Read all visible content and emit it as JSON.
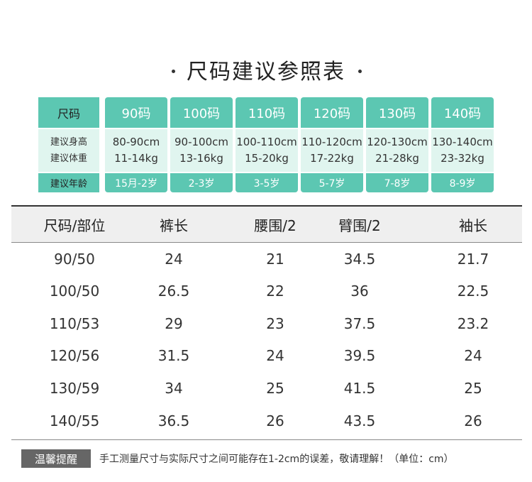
{
  "title": "尺码建议参照表",
  "size_guide": {
    "header": [
      "尺码",
      "90码",
      "100码",
      "110码",
      "120码",
      "130码",
      "140码"
    ],
    "height_label": "建议身高",
    "weight_label": "建议体重",
    "heights": [
      "80-90cm",
      "90-100cm",
      "100-110cm",
      "110-120cm",
      "120-130cm",
      "130-140cm"
    ],
    "weights": [
      "11-14kg",
      "13-16kg",
      "15-20kg",
      "17-22kg",
      "21-28kg",
      "23-32kg"
    ],
    "age_label": "建议年龄",
    "ages": [
      "15月-2岁",
      "2-3岁",
      "3-5岁",
      "5-7岁",
      "7-8岁",
      "8-9岁"
    ]
  },
  "table": {
    "headers": [
      "尺码/部位",
      "裤长",
      "腰围/2",
      "臂围/2",
      "袖长"
    ],
    "rows": [
      [
        "90/50",
        "24",
        "21",
        "34.5",
        "21.7"
      ],
      [
        "100/50",
        "26.5",
        "22",
        "36",
        "22.5"
      ],
      [
        "110/53",
        "29",
        "23",
        "37.5",
        "23.2"
      ],
      [
        "120/56",
        "31.5",
        "24",
        "39.5",
        "24"
      ],
      [
        "130/59",
        "34",
        "25",
        "41.5",
        "25"
      ],
      [
        "140/55",
        "36.5",
        "26",
        "43.5",
        "26"
      ]
    ]
  },
  "notice": {
    "badge": "温馨提醒",
    "text": "手工测量尺寸与实际尺寸之间可能存在1-2cm的误差，敬请理解！（单位：cm）"
  }
}
